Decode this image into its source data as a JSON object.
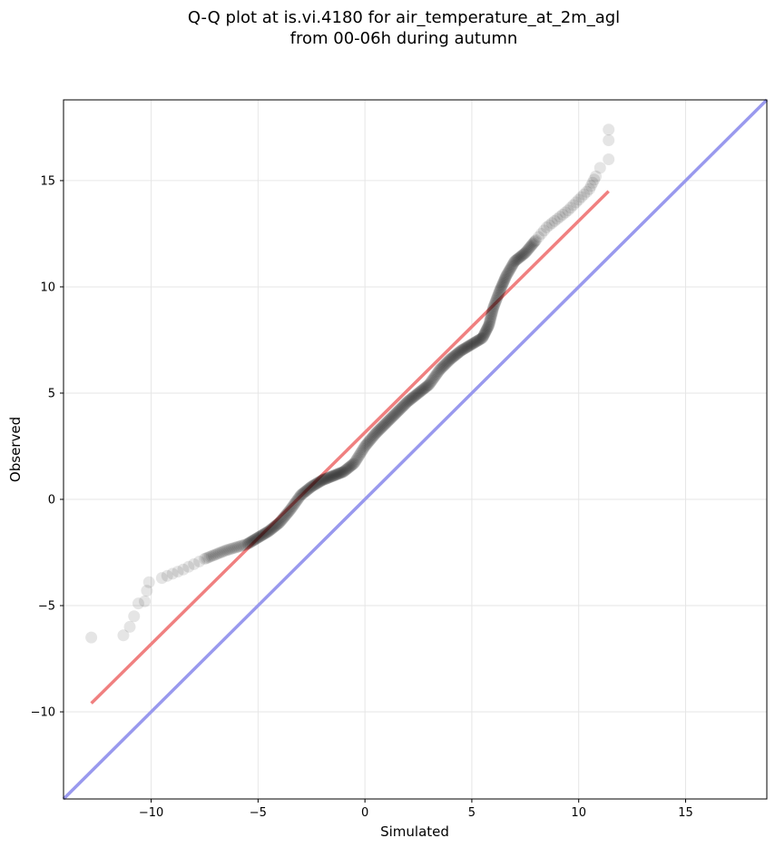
{
  "chart_data": {
    "type": "scatter",
    "title_lines": [
      "Q-Q plot at is.vi.4180 for air_temperature_at_2m_agl",
      "from 00-06h during autumn"
    ],
    "xlabel": "Simulated",
    "ylabel": "Observed",
    "xlim": [
      -14.1,
      18.8
    ],
    "ylim": [
      -14.1,
      18.8
    ],
    "x_ticks": [
      -10,
      -5,
      0,
      5,
      10,
      15
    ],
    "y_ticks": [
      -10,
      -5,
      0,
      5,
      10,
      15
    ],
    "x_tick_labels": [
      "−10",
      "−5",
      "0",
      "5",
      "10",
      "15"
    ],
    "y_tick_labels": [
      "−10",
      "−5",
      "0",
      "5",
      "10",
      "15"
    ],
    "grid": true,
    "colors": {
      "points": "#000000",
      "fit_line": "#f08080",
      "identity_line": "#9999ee",
      "grid": "#e6e6e6"
    },
    "quantile_curve": [
      [
        -12.8,
        -6.5
      ],
      [
        -11.3,
        -6.4
      ],
      [
        -11.0,
        -6.0
      ],
      [
        -10.8,
        -5.5
      ],
      [
        -10.6,
        -4.9
      ],
      [
        -10.3,
        -4.8
      ],
      [
        -10.2,
        -4.3
      ],
      [
        -10.1,
        -3.9
      ],
      [
        -9.5,
        -3.7
      ],
      [
        -8.5,
        -3.3
      ],
      [
        -7.5,
        -2.8
      ],
      [
        -6.5,
        -2.4
      ],
      [
        -5.5,
        -2.1
      ],
      [
        -5.0,
        -1.8
      ],
      [
        -4.5,
        -1.5
      ],
      [
        -4.0,
        -1.1
      ],
      [
        -3.5,
        -0.5
      ],
      [
        -3.0,
        0.2
      ],
      [
        -2.5,
        0.6
      ],
      [
        -2.0,
        0.9
      ],
      [
        -1.5,
        1.1
      ],
      [
        -1.0,
        1.3
      ],
      [
        -0.5,
        1.7
      ],
      [
        0.0,
        2.5
      ],
      [
        0.5,
        3.1
      ],
      [
        1.0,
        3.6
      ],
      [
        1.5,
        4.1
      ],
      [
        2.0,
        4.6
      ],
      [
        2.5,
        5.0
      ],
      [
        3.0,
        5.4
      ],
      [
        3.5,
        6.1
      ],
      [
        4.0,
        6.6
      ],
      [
        4.5,
        7.0
      ],
      [
        5.0,
        7.3
      ],
      [
        5.5,
        7.6
      ],
      [
        5.8,
        8.2
      ],
      [
        6.0,
        9.0
      ],
      [
        6.3,
        9.8
      ],
      [
        6.6,
        10.5
      ],
      [
        7.0,
        11.2
      ],
      [
        7.5,
        11.6
      ],
      [
        8.0,
        12.2
      ],
      [
        8.5,
        12.8
      ],
      [
        9.0,
        13.2
      ],
      [
        9.5,
        13.6
      ],
      [
        10.0,
        14.1
      ],
      [
        10.5,
        14.6
      ],
      [
        10.8,
        15.2
      ],
      [
        11.0,
        15.6
      ],
      [
        11.4,
        16.0
      ],
      [
        11.4,
        16.9
      ],
      [
        11.4,
        17.4
      ]
    ],
    "fit_line": {
      "from": [
        -12.8,
        -9.6
      ],
      "to": [
        11.4,
        14.5
      ]
    },
    "identity_line": {
      "from": [
        -14.1,
        -14.1
      ],
      "to": [
        18.8,
        18.8
      ]
    }
  }
}
